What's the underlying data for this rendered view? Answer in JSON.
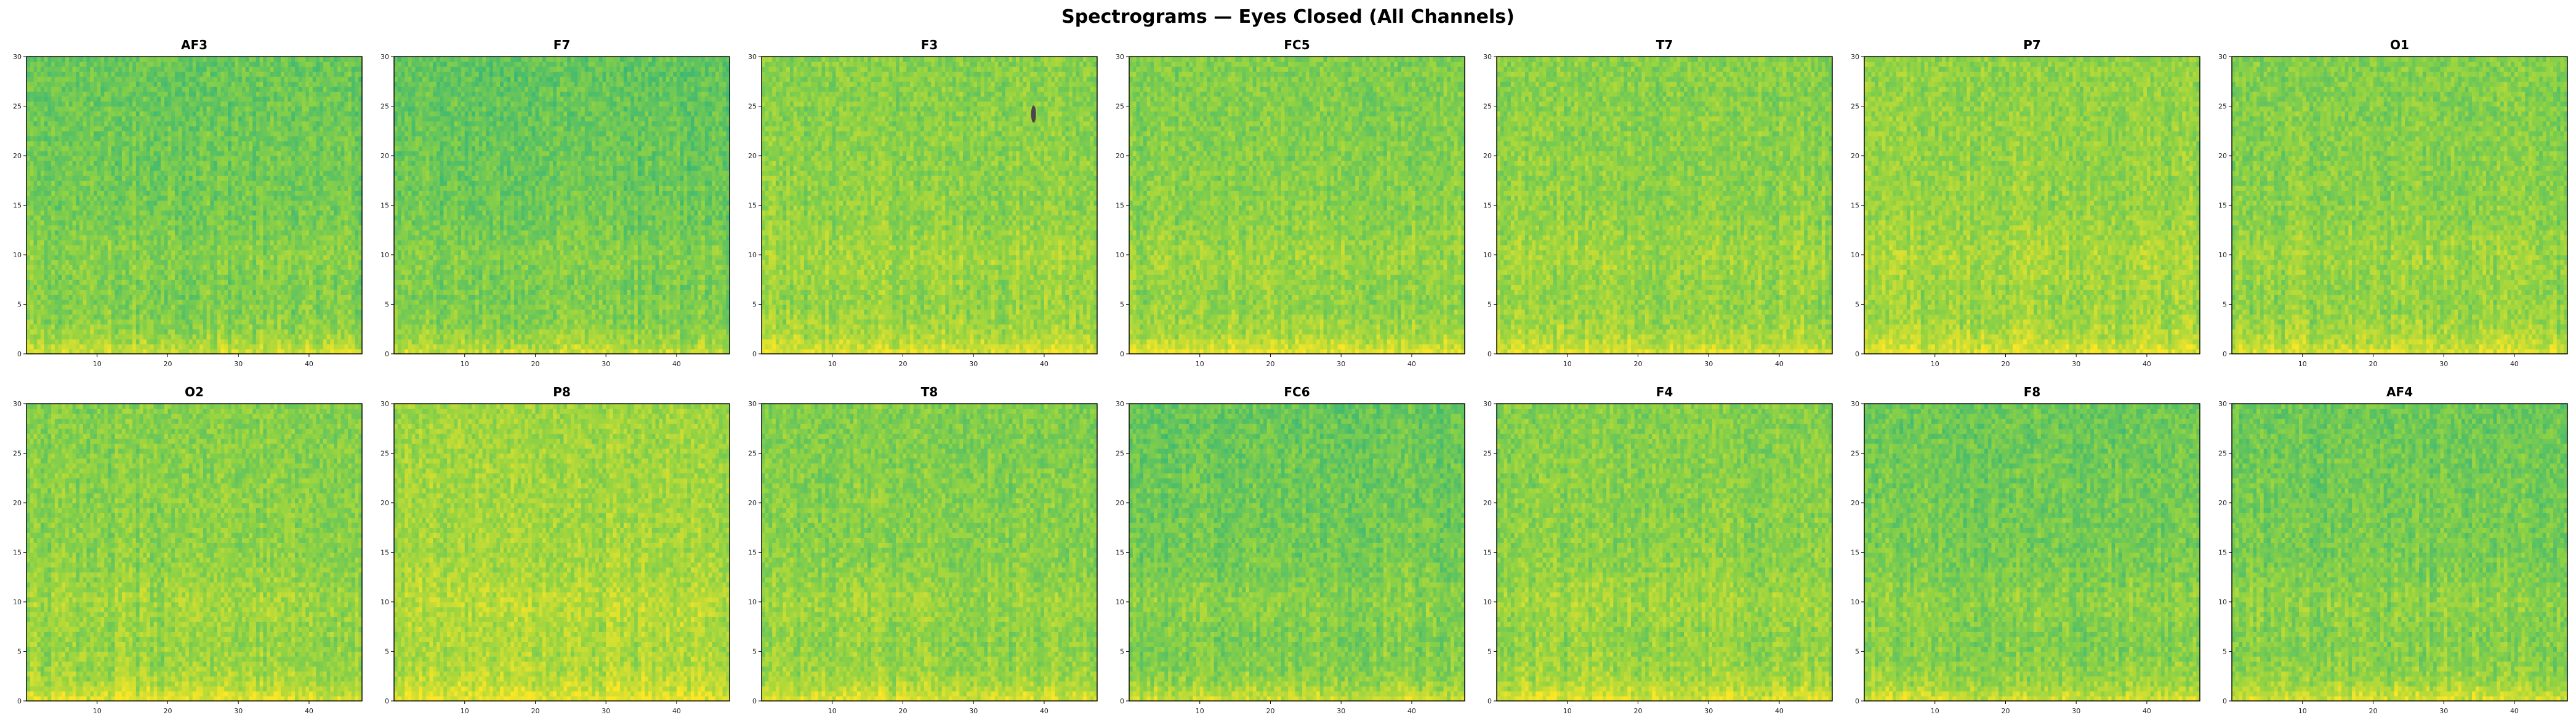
{
  "figure": {
    "title": "Spectrograms — Eyes Closed (All Channels)"
  },
  "colors": {
    "low": "#2fb47c",
    "mid": "#8fd244",
    "high": "#fde725",
    "anomaly": "#3b2a4f",
    "axis": "#000000"
  },
  "chart_data": [
    {
      "type": "heatmap",
      "title": "AF3",
      "xlim": [
        0,
        47.5
      ],
      "ylim": [
        0,
        30
      ],
      "xticks": [
        10,
        20,
        30,
        40
      ],
      "yticks": [
        0,
        5,
        10,
        15,
        20,
        25,
        30
      ],
      "base_level": 0.42,
      "low_freq_boost": 0.42,
      "top_fade": 0.12,
      "grid": false
    },
    {
      "type": "heatmap",
      "title": "F7",
      "xlim": [
        0,
        47.5
      ],
      "ylim": [
        0,
        30
      ],
      "xticks": [
        10,
        20,
        30,
        40
      ],
      "yticks": [
        0,
        5,
        10,
        15,
        20,
        25,
        30
      ],
      "base_level": 0.4,
      "low_freq_boost": 0.4,
      "top_fade": 0.14,
      "grid": false
    },
    {
      "type": "heatmap",
      "title": "F3",
      "xlim": [
        0,
        47.5
      ],
      "ylim": [
        0,
        30
      ],
      "xticks": [
        10,
        20,
        30,
        40
      ],
      "yticks": [
        0,
        5,
        10,
        15,
        20,
        25,
        30
      ],
      "base_level": 0.52,
      "low_freq_boost": 0.4,
      "top_fade": 0.06,
      "grid": false
    },
    {
      "type": "heatmap",
      "title": "FC5",
      "xlim": [
        0,
        47.5
      ],
      "ylim": [
        0,
        30
      ],
      "xticks": [
        10,
        20,
        30,
        40
      ],
      "yticks": [
        0,
        5,
        10,
        15,
        20,
        25,
        30
      ],
      "base_level": 0.5,
      "low_freq_boost": 0.46,
      "top_fade": 0.08,
      "grid": false
    },
    {
      "type": "heatmap",
      "title": "T7",
      "xlim": [
        0,
        47.5
      ],
      "ylim": [
        0,
        30
      ],
      "xticks": [
        10,
        20,
        30,
        40
      ],
      "yticks": [
        0,
        5,
        10,
        15,
        20,
        25,
        30
      ],
      "base_level": 0.52,
      "low_freq_boost": 0.38,
      "top_fade": 0.06,
      "grid": false
    },
    {
      "type": "heatmap",
      "title": "P7",
      "xlim": [
        0,
        47.5
      ],
      "ylim": [
        0,
        30
      ],
      "xticks": [
        10,
        20,
        30,
        40
      ],
      "yticks": [
        0,
        5,
        10,
        15,
        20,
        25,
        30
      ],
      "base_level": 0.56,
      "low_freq_boost": 0.36,
      "top_fade": 0.06,
      "grid": false
    },
    {
      "type": "heatmap",
      "title": "O1",
      "xlim": [
        0,
        47.5
      ],
      "ylim": [
        0,
        30
      ],
      "xticks": [
        10,
        20,
        30,
        40
      ],
      "yticks": [
        0,
        5,
        10,
        15,
        20,
        25,
        30
      ],
      "base_level": 0.5,
      "low_freq_boost": 0.4,
      "top_fade": 0.08,
      "grid": false
    },
    {
      "type": "heatmap",
      "title": "O2",
      "xlim": [
        0,
        47.5
      ],
      "ylim": [
        0,
        30
      ],
      "xticks": [
        10,
        20,
        30,
        40
      ],
      "yticks": [
        0,
        5,
        10,
        15,
        20,
        25,
        30
      ],
      "base_level": 0.52,
      "low_freq_boost": 0.4,
      "top_fade": 0.08,
      "grid": false
    },
    {
      "type": "heatmap",
      "title": "P8",
      "xlim": [
        0,
        47.5
      ],
      "ylim": [
        0,
        30
      ],
      "xticks": [
        10,
        20,
        30,
        40
      ],
      "yticks": [
        0,
        5,
        10,
        15,
        20,
        25,
        30
      ],
      "base_level": 0.62,
      "low_freq_boost": 0.34,
      "top_fade": 0.06,
      "grid": false
    },
    {
      "type": "heatmap",
      "title": "T8",
      "xlim": [
        0,
        47.5
      ],
      "ylim": [
        0,
        30
      ],
      "xticks": [
        10,
        20,
        30,
        40
      ],
      "yticks": [
        0,
        5,
        10,
        15,
        20,
        25,
        30
      ],
      "base_level": 0.5,
      "low_freq_boost": 0.4,
      "top_fade": 0.08,
      "grid": false
    },
    {
      "type": "heatmap",
      "title": "FC6",
      "xlim": [
        0,
        47.5
      ],
      "ylim": [
        0,
        30
      ],
      "xticks": [
        10,
        20,
        30,
        40
      ],
      "yticks": [
        0,
        5,
        10,
        15,
        20,
        25,
        30
      ],
      "base_level": 0.44,
      "low_freq_boost": 0.4,
      "top_fade": 0.14,
      "grid": false
    },
    {
      "type": "heatmap",
      "title": "F4",
      "xlim": [
        0,
        47.5
      ],
      "ylim": [
        0,
        30
      ],
      "xticks": [
        10,
        20,
        30,
        40
      ],
      "yticks": [
        0,
        5,
        10,
        15,
        20,
        25,
        30
      ],
      "base_level": 0.52,
      "low_freq_boost": 0.4,
      "top_fade": 0.08,
      "grid": false
    },
    {
      "type": "heatmap",
      "title": "F8",
      "xlim": [
        0,
        47.5
      ],
      "ylim": [
        0,
        30
      ],
      "xticks": [
        10,
        20,
        30,
        40
      ],
      "yticks": [
        0,
        5,
        10,
        15,
        20,
        25,
        30
      ],
      "base_level": 0.44,
      "low_freq_boost": 0.42,
      "top_fade": 0.12,
      "grid": false
    },
    {
      "type": "heatmap",
      "title": "AF4",
      "xlim": [
        0,
        47.5
      ],
      "ylim": [
        0,
        30
      ],
      "xticks": [
        10,
        20,
        30,
        40
      ],
      "yticks": [
        0,
        5,
        10,
        15,
        20,
        25,
        30
      ],
      "base_level": 0.44,
      "low_freq_boost": 0.44,
      "top_fade": 0.12,
      "grid": false
    }
  ]
}
